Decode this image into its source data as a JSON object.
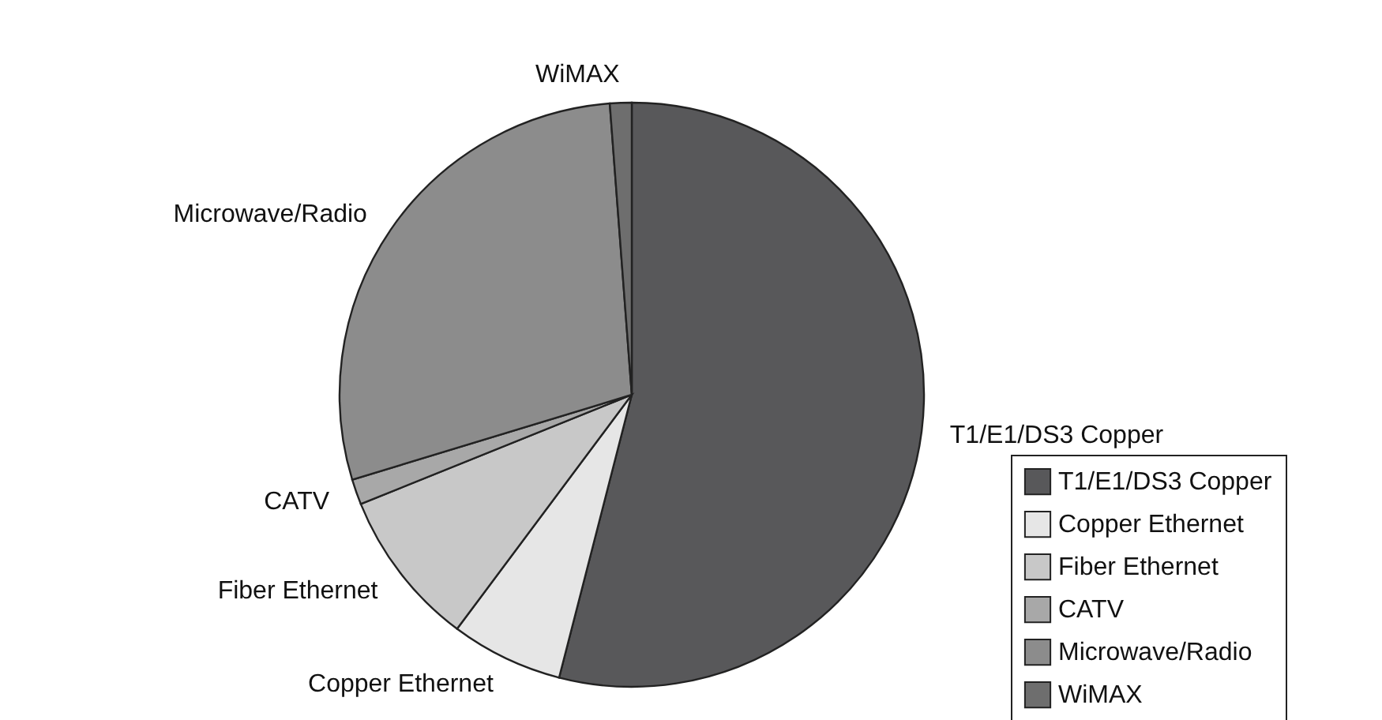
{
  "chart_data": {
    "type": "pie",
    "categories": [
      "T1/E1/DS3 Copper",
      "Copper Ethernet",
      "Fiber Ethernet",
      "CATV",
      "Microwave/Radio",
      "WiMAX"
    ],
    "values": [
      54.0,
      6.2,
      8.7,
      1.4,
      28.5,
      1.2
    ],
    "colors": [
      "#58585a",
      "#e6e6e6",
      "#c8c8c8",
      "#a8a8a8",
      "#8c8c8c",
      "#6e6e6e"
    ],
    "legend": "right"
  }
}
